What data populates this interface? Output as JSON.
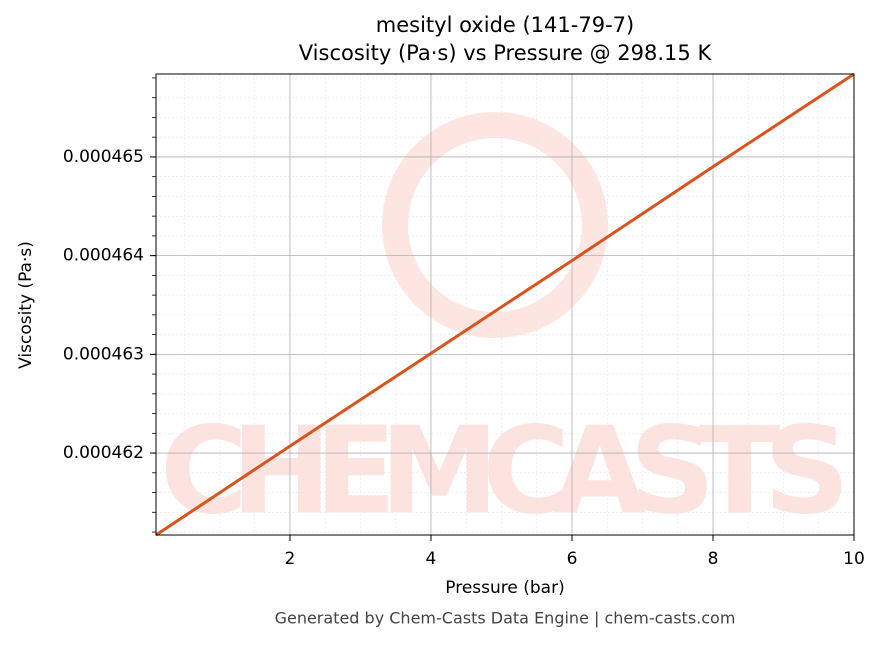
{
  "chart_data": {
    "type": "line",
    "title": "mesityl oxide (141-79-7)",
    "subtitle": "Viscosity (Pa·s) vs Pressure @ 298.15 K",
    "x_label": "Pressure (bar)",
    "y_label": "Viscosity (Pa·s)",
    "footer": "Generated by Chem-Casts Data Engine | chem-casts.com",
    "watermark": "CHEMCASTS",
    "x": [
      0.1,
      2,
      4,
      6,
      8,
      10
    ],
    "series": [
      {
        "name": "Viscosity",
        "color": "#d9531e",
        "values": [
          0.00046117,
          0.00046207,
          0.00046301,
          0.00046395,
          0.0004649,
          0.00046584
        ]
      }
    ],
    "xlim": [
      0.1,
      10
    ],
    "xticks": [
      2,
      4,
      6,
      8,
      10
    ],
    "ylim": [
      0.00046117,
      0.00046584
    ],
    "yticks": [
      0.000462,
      0.000463,
      0.000464,
      0.000465
    ],
    "grid": true
  }
}
